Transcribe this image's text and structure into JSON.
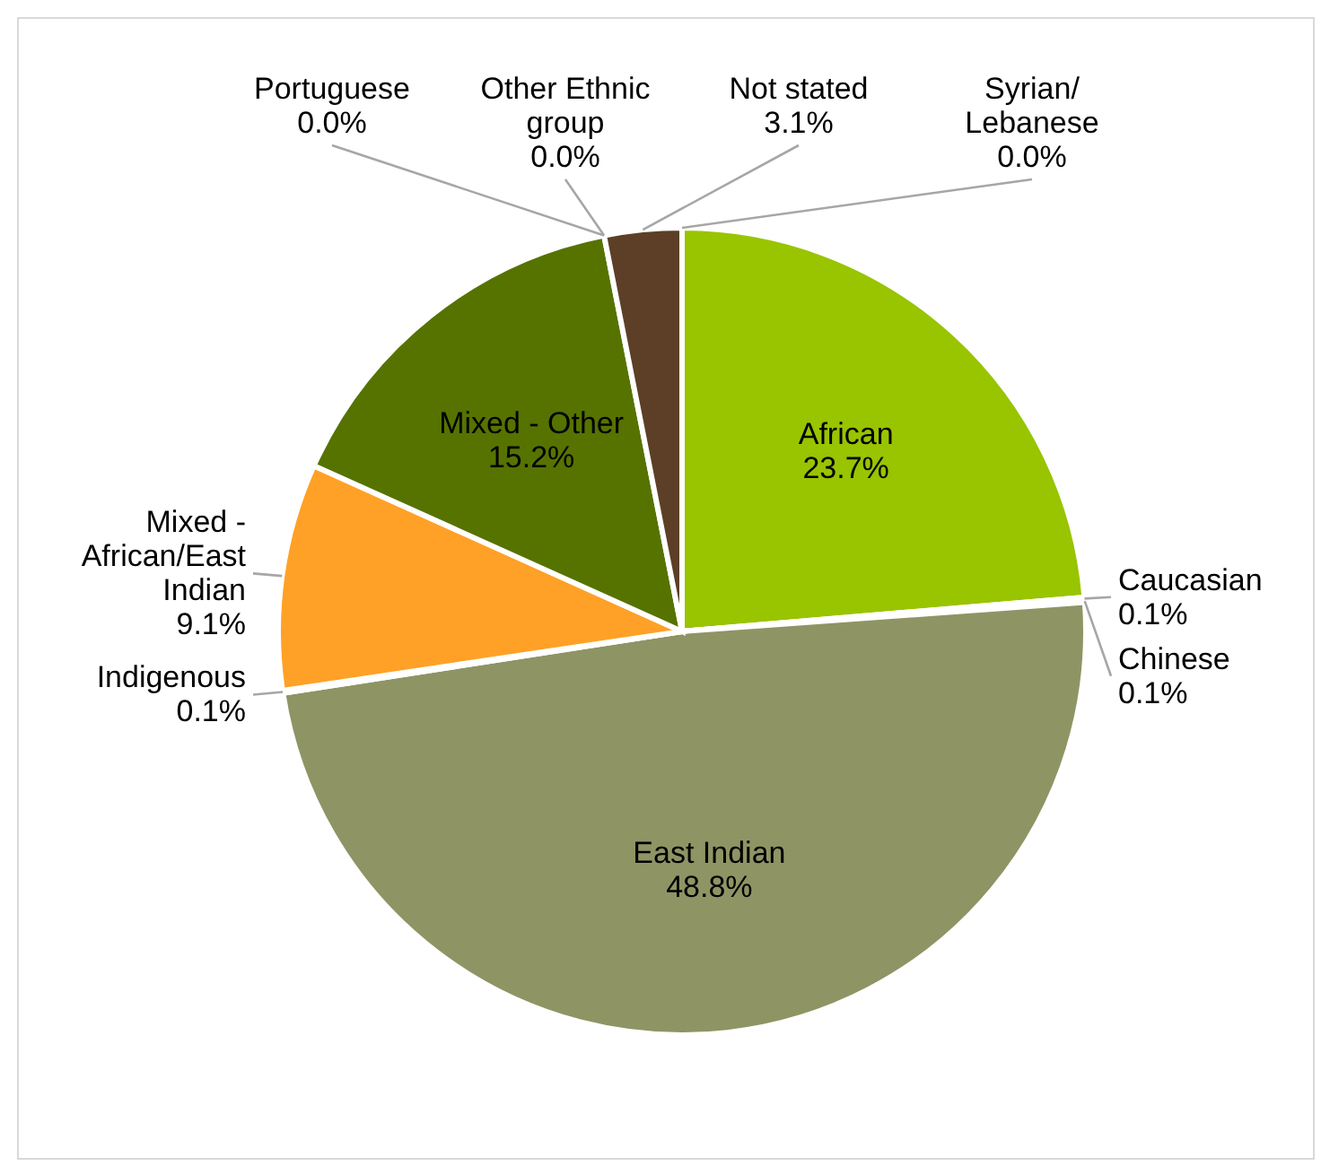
{
  "chart_data": {
    "type": "pie",
    "categories": [
      "African",
      "Caucasian",
      "Chinese",
      "East Indian",
      "Indigenous",
      "Mixed - African/East Indian",
      "Mixed - Other",
      "Portuguese",
      "Other Ethnic group",
      "Not stated",
      "Syrian/Lebanese"
    ],
    "values": [
      23.7,
      0.1,
      0.1,
      48.8,
      0.1,
      9.1,
      15.2,
      0.0,
      0.0,
      3.1,
      0.0
    ],
    "value_labels": [
      "23.7%",
      "0.1%",
      "0.1%",
      "48.8%",
      "0.1%",
      "9.1%",
      "15.2%",
      "0.0%",
      "0.0%",
      "3.1%",
      "0.0%"
    ],
    "colors": [
      "#99c400",
      "#c3d69b",
      "#4f6228",
      "#8f9464",
      "#d9d9d9",
      "#ffa126",
      "#567300",
      "#7f7f7f",
      "#a6a6a6",
      "#5c3f26",
      "#e46c0a"
    ],
    "legend": false
  }
}
